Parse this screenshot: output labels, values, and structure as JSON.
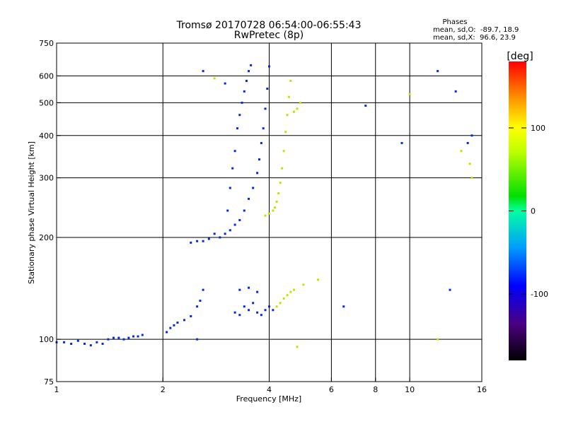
{
  "chart_data": {
    "type": "scatter",
    "title": "Tromsø 20170728 06:54:00-06:55:43",
    "subtitle": "RwPretec (8p)",
    "stats": {
      "header": "Phases",
      "o_line": "mean, sd,O:  -89.7, 18.9",
      "x_line": "mean, sd,X:  96.6, 23.9"
    },
    "xlabel": "Frequency [MHz]",
    "ylabel": "Stationary phase Virtual Height [km]",
    "x_scale": "log",
    "y_scale": "log",
    "xlim": [
      1,
      16
    ],
    "ylim": [
      75,
      750
    ],
    "x_ticks": [
      {
        "value": 1,
        "label": "1"
      },
      {
        "value": 2,
        "label": "2"
      },
      {
        "value": 4,
        "label": "4"
      },
      {
        "value": 6,
        "label": "6"
      },
      {
        "value": 8,
        "label": "8"
      },
      {
        "value": 10,
        "label": "10"
      },
      {
        "value": 16,
        "label": "16"
      }
    ],
    "x_grid": [
      2,
      4,
      6,
      8,
      10
    ],
    "y_ticks": [
      {
        "value": 75,
        "label": "75"
      },
      {
        "value": 100,
        "label": "100"
      },
      {
        "value": 200,
        "label": "200"
      },
      {
        "value": 300,
        "label": "300"
      },
      {
        "value": 400,
        "label": "400"
      },
      {
        "value": 500,
        "label": "500"
      },
      {
        "value": 600,
        "label": "600"
      },
      {
        "value": 750,
        "label": "750"
      }
    ],
    "y_grid": [
      100,
      200,
      300,
      400,
      500,
      600
    ],
    "grid": true,
    "colorbar": {
      "label": "[deg]",
      "ticks": [
        {
          "value": 100,
          "label": "100"
        },
        {
          "value": 0,
          "label": "0"
        },
        {
          "value": -100,
          "label": "-100"
        }
      ],
      "range": [
        -180,
        180
      ]
    },
    "series": [
      {
        "name": "O",
        "phase": -95,
        "points": [
          [
            1.0,
            98
          ],
          [
            1.05,
            98
          ],
          [
            1.1,
            97
          ],
          [
            1.15,
            99
          ],
          [
            1.2,
            97
          ],
          [
            1.25,
            96
          ],
          [
            1.3,
            98
          ],
          [
            1.35,
            97
          ],
          [
            1.4,
            100
          ],
          [
            1.45,
            101
          ],
          [
            1.5,
            101
          ],
          [
            1.55,
            100
          ],
          [
            1.6,
            101
          ],
          [
            1.65,
            102
          ],
          [
            1.7,
            102
          ],
          [
            1.75,
            103
          ],
          [
            2.05,
            105
          ],
          [
            2.1,
            108
          ],
          [
            2.15,
            110
          ],
          [
            2.2,
            112
          ],
          [
            2.3,
            114
          ],
          [
            2.4,
            117
          ],
          [
            2.5,
            125
          ],
          [
            2.55,
            130
          ],
          [
            2.6,
            140
          ],
          [
            2.4,
            193
          ],
          [
            2.5,
            195
          ],
          [
            2.6,
            195
          ],
          [
            2.7,
            198
          ],
          [
            2.8,
            205
          ],
          [
            2.9,
            200
          ],
          [
            3.0,
            205
          ],
          [
            3.1,
            210
          ],
          [
            3.2,
            218
          ],
          [
            3.3,
            225
          ],
          [
            3.4,
            240
          ],
          [
            3.5,
            260
          ],
          [
            3.6,
            280
          ],
          [
            3.7,
            310
          ],
          [
            3.75,
            340
          ],
          [
            3.8,
            380
          ],
          [
            3.85,
            420
          ],
          [
            3.9,
            480
          ],
          [
            3.95,
            550
          ],
          [
            4.0,
            640
          ],
          [
            3.05,
            240
          ],
          [
            3.1,
            280
          ],
          [
            3.15,
            320
          ],
          [
            3.2,
            360
          ],
          [
            3.25,
            420
          ],
          [
            3.3,
            460
          ],
          [
            3.35,
            500
          ],
          [
            3.4,
            540
          ],
          [
            3.45,
            580
          ],
          [
            3.5,
            620
          ],
          [
            3.55,
            645
          ],
          [
            3.2,
            120
          ],
          [
            3.3,
            118
          ],
          [
            3.4,
            125
          ],
          [
            3.5,
            122
          ],
          [
            3.6,
            128
          ],
          [
            3.7,
            120
          ],
          [
            3.8,
            118
          ],
          [
            3.9,
            122
          ],
          [
            4.0,
            125
          ],
          [
            4.1,
            122
          ],
          [
            3.3,
            140
          ],
          [
            3.5,
            142
          ],
          [
            3.7,
            138
          ],
          [
            2.6,
            620
          ],
          [
            3.0,
            570
          ],
          [
            2.5,
            100
          ],
          [
            7.5,
            490
          ],
          [
            9.5,
            380
          ],
          [
            13.5,
            540
          ],
          [
            14.6,
            380
          ],
          [
            6.5,
            125
          ],
          [
            13,
            140
          ],
          [
            12,
            620
          ],
          [
            15,
            400
          ]
        ]
      },
      {
        "name": "X",
        "phase": 95,
        "points": [
          [
            3.9,
            232
          ],
          [
            4.0,
            235
          ],
          [
            4.1,
            240
          ],
          [
            4.15,
            245
          ],
          [
            4.2,
            255
          ],
          [
            4.25,
            270
          ],
          [
            4.3,
            290
          ],
          [
            4.35,
            320
          ],
          [
            4.4,
            360
          ],
          [
            4.45,
            410
          ],
          [
            4.5,
            460
          ],
          [
            4.55,
            520
          ],
          [
            4.6,
            580
          ],
          [
            4.7,
            470
          ],
          [
            4.8,
            480
          ],
          [
            4.9,
            500
          ],
          [
            4.2,
            125
          ],
          [
            4.3,
            128
          ],
          [
            4.4,
            132
          ],
          [
            4.5,
            135
          ],
          [
            4.6,
            138
          ],
          [
            4.7,
            140
          ],
          [
            5.0,
            145
          ],
          [
            5.5,
            150
          ],
          [
            2.8,
            590
          ],
          [
            10,
            530
          ],
          [
            12,
            100
          ],
          [
            14.8,
            330
          ],
          [
            15,
            300
          ],
          [
            14,
            360
          ],
          [
            4.8,
            95
          ]
        ]
      }
    ]
  }
}
